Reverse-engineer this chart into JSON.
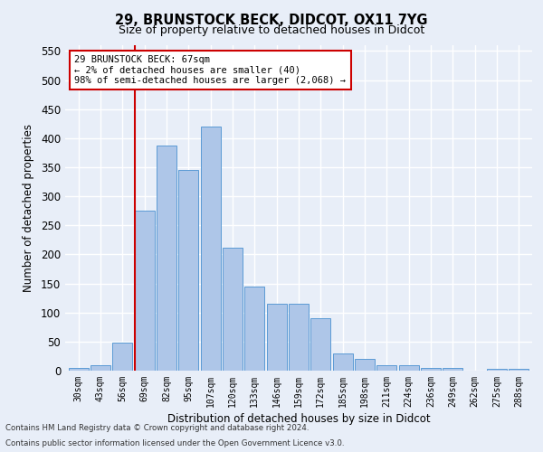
{
  "title1": "29, BRUNSTOCK BECK, DIDCOT, OX11 7YG",
  "title2": "Size of property relative to detached houses in Didcot",
  "xlabel": "Distribution of detached houses by size in Didcot",
  "ylabel": "Number of detached properties",
  "categories": [
    "30sqm",
    "43sqm",
    "56sqm",
    "69sqm",
    "82sqm",
    "95sqm",
    "107sqm",
    "120sqm",
    "133sqm",
    "146sqm",
    "159sqm",
    "172sqm",
    "185sqm",
    "198sqm",
    "211sqm",
    "224sqm",
    "236sqm",
    "249sqm",
    "262sqm",
    "275sqm",
    "288sqm"
  ],
  "values": [
    5,
    10,
    48,
    275,
    388,
    345,
    420,
    212,
    145,
    115,
    115,
    90,
    30,
    20,
    10,
    10,
    5,
    5,
    0,
    3,
    3
  ],
  "bar_color": "#aec6e8",
  "bar_edge_color": "#5b9bd5",
  "vline_color": "#cc0000",
  "vline_x": 2.55,
  "annotation_text": "29 BRUNSTOCK BECK: 67sqm\n← 2% of detached houses are smaller (40)\n98% of semi-detached houses are larger (2,068) →",
  "annotation_box_color": "#ffffff",
  "annotation_box_edge": "#cc0000",
  "ylim": [
    0,
    560
  ],
  "yticks": [
    0,
    50,
    100,
    150,
    200,
    250,
    300,
    350,
    400,
    450,
    500,
    550
  ],
  "footer1": "Contains HM Land Registry data © Crown copyright and database right 2024.",
  "footer2": "Contains public sector information licensed under the Open Government Licence v3.0.",
  "bg_color": "#e8eef8",
  "grid_color": "#ffffff"
}
